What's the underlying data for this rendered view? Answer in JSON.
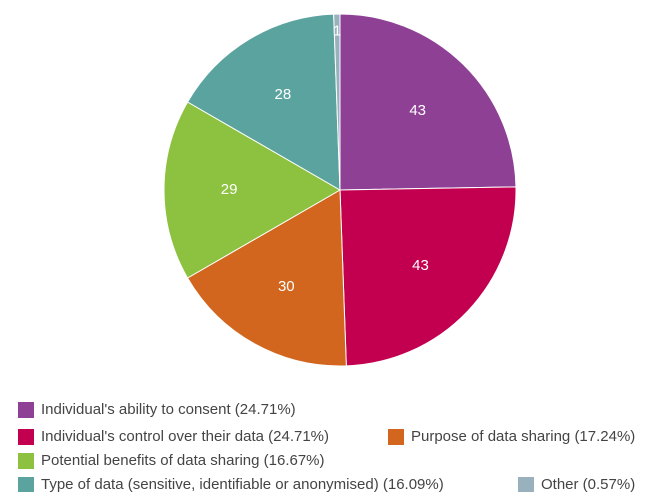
{
  "chart_data": {
    "type": "pie",
    "categories": [
      "Individual's ability to consent (24.71%)",
      "Individual's control over their data (24.71%)",
      "Purpose of data sharing (17.24%)",
      "Potential benefits of data sharing (16.67%)",
      "Type of data (sensitive, identifiable or anonymised) (16.09%)",
      "Other (0.57%)"
    ],
    "values": [
      43,
      43,
      30,
      29,
      28,
      1
    ],
    "colors": [
      "#8e4095",
      "#c3004f",
      "#d2661f",
      "#8cc23f",
      "#5ba39f",
      "#98b1bc"
    ],
    "legend": "bottom"
  }
}
